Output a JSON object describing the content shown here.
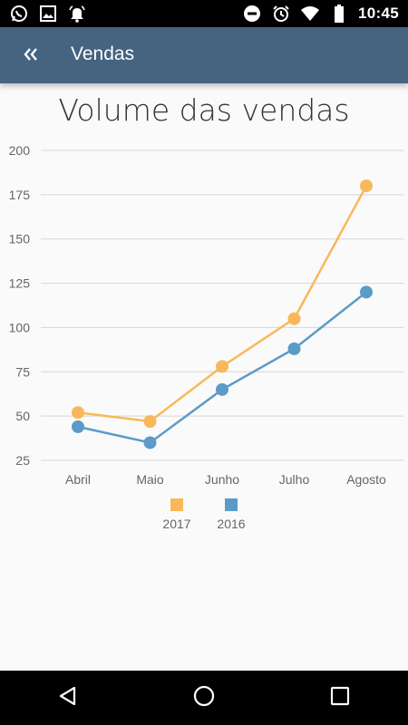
{
  "status_bar": {
    "time": "10:45",
    "left_icons": [
      "whatsapp-icon",
      "image-icon",
      "alarm-bell-icon"
    ],
    "right_icons": [
      "do-not-disturb-icon",
      "alarm-clock-icon",
      "wifi-icon",
      "battery-icon"
    ]
  },
  "app_bar": {
    "back_icon": "double-chevron-left-icon",
    "title": "Vendas",
    "background": "#46637f"
  },
  "chart_data": {
    "type": "line",
    "title": "Volume das vendas",
    "categories": [
      "Abril",
      "Maio",
      "Junho",
      "Julho",
      "Agosto"
    ],
    "series": [
      {
        "name": "2017",
        "color": "#f8b859",
        "values": [
          52,
          47,
          78,
          105,
          180
        ]
      },
      {
        "name": "2016",
        "color": "#5b9bc8",
        "values": [
          44,
          35,
          65,
          88,
          120
        ]
      }
    ],
    "yticks": [
      25,
      50,
      75,
      100,
      125,
      150,
      175,
      200
    ],
    "ylim": [
      25,
      200
    ],
    "grid": true,
    "legend_position": "bottom"
  },
  "nav_bar": {
    "buttons": [
      "back-triangle-icon",
      "home-circle-icon",
      "recents-square-icon"
    ]
  }
}
